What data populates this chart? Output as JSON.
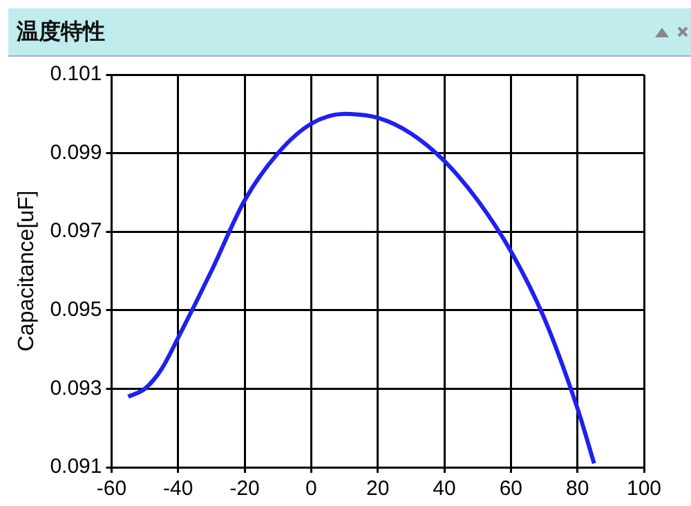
{
  "chart_data": {
    "type": "line",
    "title": "温度特性",
    "ylabel": "Capacitance[uF]",
    "x": [
      -55,
      -50,
      -45,
      -40,
      -30,
      -20,
      -10,
      0,
      10,
      20,
      30,
      40,
      50,
      60,
      70,
      80,
      85
    ],
    "series": [
      {
        "color": "#2020f0",
        "values": [
          0.0928,
          0.093,
          0.0935,
          0.0943,
          0.096,
          0.0978,
          0.099,
          0.09975,
          0.1,
          0.0999,
          0.0995,
          0.0988,
          0.0978,
          0.0965,
          0.0948,
          0.0925,
          0.0911
        ]
      }
    ],
    "xlim": [
      -60,
      100
    ],
    "xticks": [
      -60,
      -40,
      -20,
      0,
      20,
      40,
      60,
      80,
      100
    ],
    "ylim": [
      0.091,
      0.101
    ],
    "yticks": [
      0.091,
      0.093,
      0.095,
      0.097,
      0.099,
      0.101
    ],
    "grid": true,
    "legend": false,
    "marker": "none",
    "line_style": "solid"
  }
}
